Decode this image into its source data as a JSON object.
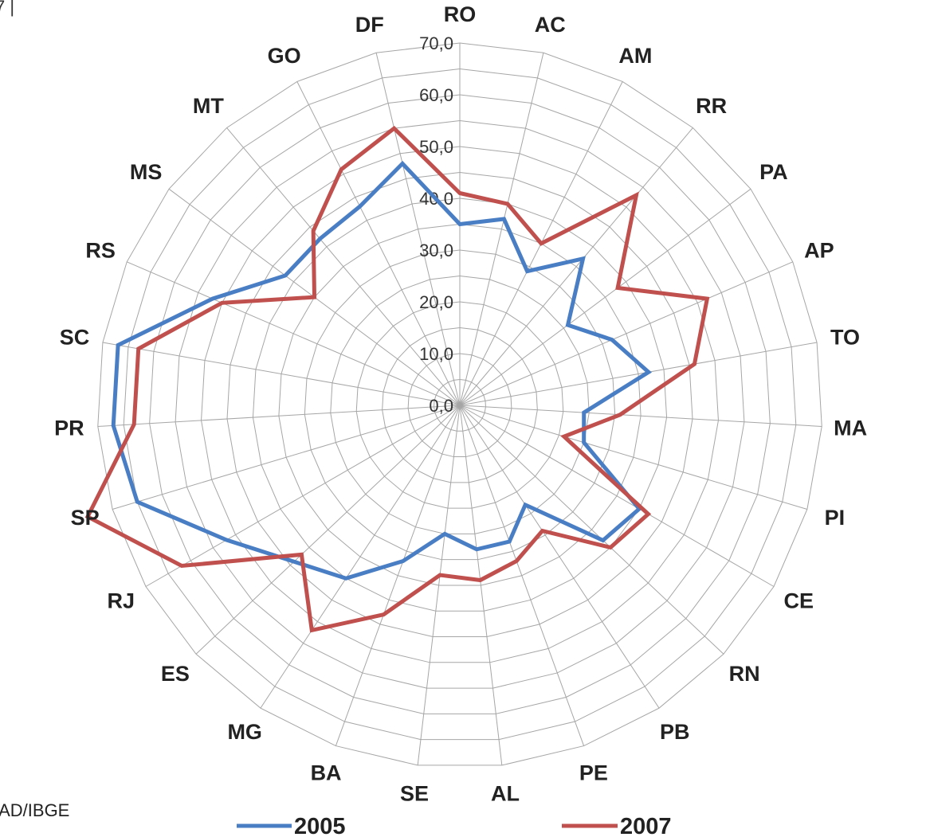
{
  "header_mark": "7 |",
  "source_text": "IAD/IBGE",
  "colors": {
    "series_2005": "#4a7ec4",
    "series_2007": "#c0504d",
    "grid": "#a6a6a6"
  },
  "chart_data": {
    "type": "radar",
    "categories": [
      "RO",
      "AC",
      "AM",
      "RR",
      "PA",
      "AP",
      "TO",
      "MA",
      "PI",
      "CE",
      "RN",
      "PB",
      "PE",
      "AL",
      "SE",
      "BA",
      "MG",
      "ES",
      "RJ",
      "SP",
      "PR",
      "SC",
      "RS",
      "MS",
      "MT",
      "GO",
      "DF"
    ],
    "rlim": [
      0,
      70
    ],
    "ticks": [
      "0,0",
      "10,0",
      "20,0",
      "30,0",
      "40,0",
      "50,0",
      "60,0",
      "70,0"
    ],
    "grid": true,
    "legend_position": "bottom",
    "series": [
      {
        "name": "2005",
        "color": "#4a7ec4",
        "values": [
          35,
          37,
          29,
          37,
          26,
          32,
          37,
          24,
          25,
          40,
          38,
          23,
          28,
          28,
          25,
          32,
          40,
          44,
          52,
          65,
          67,
          67,
          52,
          42,
          42,
          43,
          48
        ]
      },
      {
        "name": "2007",
        "color": "#c0504d",
        "values": [
          41,
          40,
          35,
          53,
          38,
          52,
          46,
          31,
          21,
          42,
          40,
          29,
          32,
          34,
          33,
          43,
          52,
          42,
          62,
          75,
          63,
          63,
          50,
          35,
          44,
          51,
          55
        ]
      }
    ]
  }
}
